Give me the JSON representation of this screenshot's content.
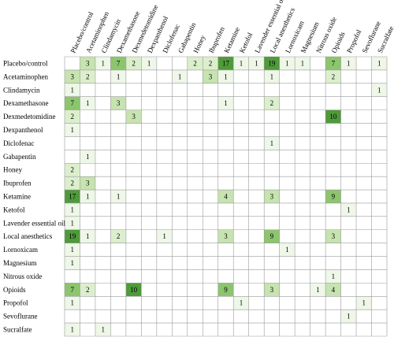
{
  "chart_data": {
    "type": "heatmap",
    "title": "",
    "categories": [
      "Placebo/control",
      "Acetaminophen",
      "Clindamycin",
      "Dexamethasone",
      "Dexmedetomidine",
      "Dexpanthenol",
      "Diclofenac",
      "Gabapentin",
      "Honey",
      "Ibuprofen",
      "Ketamine",
      "Ketofol",
      "Lavender essential oil",
      "Local anesthetics",
      "Lornoxicam",
      "Magnesium",
      "Nitrous oxide",
      "Opioids",
      "Propofol",
      "Sevoflurane",
      "Sucralfate"
    ],
    "cells": [
      {
        "row": 0,
        "col": 1,
        "value": 3
      },
      {
        "row": 0,
        "col": 2,
        "value": 1
      },
      {
        "row": 0,
        "col": 3,
        "value": 7
      },
      {
        "row": 0,
        "col": 4,
        "value": 2
      },
      {
        "row": 0,
        "col": 5,
        "value": 1
      },
      {
        "row": 0,
        "col": 8,
        "value": 2
      },
      {
        "row": 0,
        "col": 9,
        "value": 2
      },
      {
        "row": 0,
        "col": 10,
        "value": 17
      },
      {
        "row": 0,
        "col": 11,
        "value": 1
      },
      {
        "row": 0,
        "col": 12,
        "value": 1
      },
      {
        "row": 0,
        "col": 13,
        "value": 19
      },
      {
        "row": 0,
        "col": 14,
        "value": 1
      },
      {
        "row": 0,
        "col": 15,
        "value": 1
      },
      {
        "row": 0,
        "col": 17,
        "value": 7
      },
      {
        "row": 0,
        "col": 18,
        "value": 1
      },
      {
        "row": 0,
        "col": 20,
        "value": 1
      },
      {
        "row": 1,
        "col": 0,
        "value": 3
      },
      {
        "row": 1,
        "col": 1,
        "value": 2
      },
      {
        "row": 1,
        "col": 3,
        "value": 1
      },
      {
        "row": 1,
        "col": 7,
        "value": 1
      },
      {
        "row": 1,
        "col": 9,
        "value": 3
      },
      {
        "row": 1,
        "col": 10,
        "value": 1
      },
      {
        "row": 1,
        "col": 13,
        "value": 1
      },
      {
        "row": 1,
        "col": 17,
        "value": 2
      },
      {
        "row": 2,
        "col": 0,
        "value": 1
      },
      {
        "row": 2,
        "col": 20,
        "value": 1
      },
      {
        "row": 3,
        "col": 0,
        "value": 7
      },
      {
        "row": 3,
        "col": 1,
        "value": 1
      },
      {
        "row": 3,
        "col": 3,
        "value": 3
      },
      {
        "row": 3,
        "col": 10,
        "value": 1
      },
      {
        "row": 3,
        "col": 13,
        "value": 2
      },
      {
        "row": 4,
        "col": 0,
        "value": 2
      },
      {
        "row": 4,
        "col": 4,
        "value": 3
      },
      {
        "row": 4,
        "col": 17,
        "value": 10
      },
      {
        "row": 5,
        "col": 0,
        "value": 1
      },
      {
        "row": 6,
        "col": 13,
        "value": 1
      },
      {
        "row": 7,
        "col": 1,
        "value": 1
      },
      {
        "row": 8,
        "col": 0,
        "value": 2
      },
      {
        "row": 9,
        "col": 0,
        "value": 2
      },
      {
        "row": 9,
        "col": 1,
        "value": 3
      },
      {
        "row": 10,
        "col": 0,
        "value": 17
      },
      {
        "row": 10,
        "col": 1,
        "value": 1
      },
      {
        "row": 10,
        "col": 3,
        "value": 1
      },
      {
        "row": 10,
        "col": 10,
        "value": 4
      },
      {
        "row": 10,
        "col": 13,
        "value": 3
      },
      {
        "row": 10,
        "col": 17,
        "value": 9
      },
      {
        "row": 11,
        "col": 0,
        "value": 1
      },
      {
        "row": 11,
        "col": 18,
        "value": 1
      },
      {
        "row": 12,
        "col": 0,
        "value": 1
      },
      {
        "row": 13,
        "col": 0,
        "value": 19
      },
      {
        "row": 13,
        "col": 1,
        "value": 1
      },
      {
        "row": 13,
        "col": 3,
        "value": 2
      },
      {
        "row": 13,
        "col": 6,
        "value": 1
      },
      {
        "row": 13,
        "col": 10,
        "value": 3
      },
      {
        "row": 13,
        "col": 13,
        "value": 9
      },
      {
        "row": 13,
        "col": 17,
        "value": 3
      },
      {
        "row": 14,
        "col": 0,
        "value": 1
      },
      {
        "row": 14,
        "col": 14,
        "value": 1
      },
      {
        "row": 15,
        "col": 0,
        "value": 1
      },
      {
        "row": 16,
        "col": 17,
        "value": 1
      },
      {
        "row": 17,
        "col": 0,
        "value": 7
      },
      {
        "row": 17,
        "col": 1,
        "value": 2
      },
      {
        "row": 17,
        "col": 4,
        "value": 10
      },
      {
        "row": 17,
        "col": 10,
        "value": 9
      },
      {
        "row": 17,
        "col": 13,
        "value": 3
      },
      {
        "row": 17,
        "col": 16,
        "value": 1
      },
      {
        "row": 17,
        "col": 17,
        "value": 4
      },
      {
        "row": 18,
        "col": 0,
        "value": 1
      },
      {
        "row": 18,
        "col": 11,
        "value": 1
      },
      {
        "row": 18,
        "col": 19,
        "value": 1
      },
      {
        "row": 19,
        "col": 18,
        "value": 1
      },
      {
        "row": 20,
        "col": 0,
        "value": 1
      },
      {
        "row": 20,
        "col": 2,
        "value": 1
      }
    ],
    "colors": {
      "low": "#eef7e8",
      "mid": "#c6e3b0",
      "high": "#8cc56e",
      "max": "#4f9a3a"
    }
  }
}
